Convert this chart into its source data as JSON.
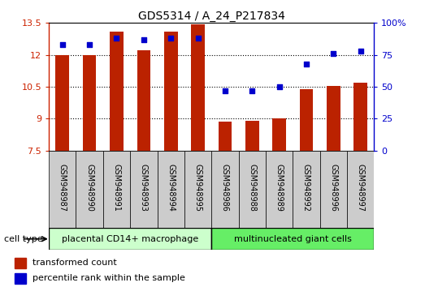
{
  "title": "GDS5314 / A_24_P217834",
  "samples": [
    "GSM948987",
    "GSM948990",
    "GSM948991",
    "GSM948993",
    "GSM948994",
    "GSM948995",
    "GSM948986",
    "GSM948988",
    "GSM948989",
    "GSM948992",
    "GSM948996",
    "GSM948997"
  ],
  "bar_values": [
    12.0,
    12.0,
    13.1,
    12.2,
    13.1,
    13.45,
    8.85,
    8.9,
    9.0,
    10.4,
    10.55,
    10.7
  ],
  "scatter_values": [
    83,
    83,
    88,
    87,
    88,
    88,
    47,
    47,
    50,
    68,
    76,
    78
  ],
  "y_min": 7.5,
  "y_max": 13.5,
  "y_ticks": [
    7.5,
    9.0,
    10.5,
    12.0,
    13.5
  ],
  "y_tick_labels": [
    "7.5",
    "9",
    "10.5",
    "12",
    "13.5"
  ],
  "y2_ticks": [
    0,
    25,
    50,
    75,
    100
  ],
  "y2_tick_labels": [
    "0",
    "25",
    "50",
    "75",
    "100%"
  ],
  "bar_color": "#bb2200",
  "scatter_color": "#0000cc",
  "group1_label": "placental CD14+ macrophage",
  "group2_label": "multinucleated giant cells",
  "group1_bg": "#ccffcc",
  "group2_bg": "#66ee66",
  "label_bg": "#cccccc",
  "cell_type_label": "cell type",
  "legend_bar": "transformed count",
  "legend_scatter": "percentile rank within the sample",
  "ytick_color": "#cc2200",
  "y2tick_color": "#0000cc",
  "bar_width": 0.5,
  "grid_yticks": [
    9.0,
    10.5,
    12.0
  ],
  "n_group1": 6,
  "n_group2": 6
}
